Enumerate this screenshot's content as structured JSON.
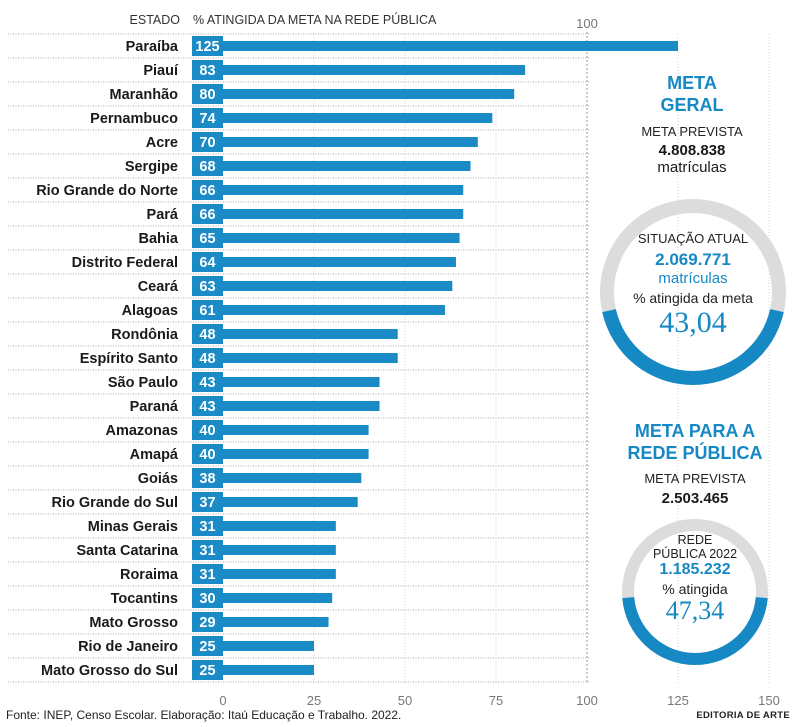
{
  "colors": {
    "bar": "#1a8bc6",
    "accent": "#1689c4",
    "ring_bg": "#dcdcdc",
    "grid": "#9a9a9a"
  },
  "chart_data": {
    "type": "bar",
    "orientation": "horizontal",
    "header_state": "ESTADO",
    "header_value": "% ATINGIDA DA META NA REDE PÚBLICA",
    "reference_label": "100",
    "categories": [
      "Paraíba",
      "Piauí",
      "Maranhão",
      "Pernambuco",
      "Acre",
      "Sergipe",
      "Rio Grande do Norte",
      "Pará",
      "Bahia",
      "Distrito Federal",
      "Ceará",
      "Alagoas",
      "Rondônia",
      "Espírito Santo",
      "São Paulo",
      "Paraná",
      "Amazonas",
      "Amapá",
      "Goiás",
      "Rio Grande do Sul",
      "Minas Gerais",
      "Santa Catarina",
      "Roraima",
      "Tocantins",
      "Mato Grosso",
      "Rio de Janeiro",
      "Mato Grosso do Sul"
    ],
    "values": [
      125,
      83,
      80,
      74,
      70,
      68,
      66,
      66,
      65,
      64,
      63,
      61,
      48,
      48,
      43,
      43,
      40,
      40,
      38,
      37,
      31,
      31,
      31,
      30,
      29,
      25,
      25
    ],
    "xlim": [
      0,
      150
    ],
    "xticks": [
      "0",
      "25",
      "50",
      "75",
      "100",
      "125",
      "150"
    ],
    "reference_line": 100
  },
  "panel_geral": {
    "title_line1": "META",
    "title_line2": "GERAL",
    "caption": "META PREVISTA",
    "value": "4.808.838",
    "unit": "matrículas",
    "ring": {
      "caption": "SITUAÇÃO ATUAL",
      "value": "2.069.771",
      "unit": "matrículas",
      "pct_caption": "% atingida da meta",
      "pct_label": "43,04",
      "pct": 43.04
    }
  },
  "panel_publica": {
    "title_line1": "META PARA A",
    "title_line2": "REDE PÚBLICA",
    "caption": "META PREVISTA",
    "value": "2.503.465",
    "ring": {
      "caption_line1": "REDE",
      "caption_line2": "PÚBLICA 2022",
      "value": "1.185.232",
      "pct_caption": "% atingida",
      "pct_label": "47,34",
      "pct": 47.34
    }
  },
  "footer": {
    "source": "Fonte: INEP, Censo Escolar. Elaboração: Itaú Educação e Trabalho. 2022.",
    "credit": "EDITORIA DE ARTE"
  }
}
